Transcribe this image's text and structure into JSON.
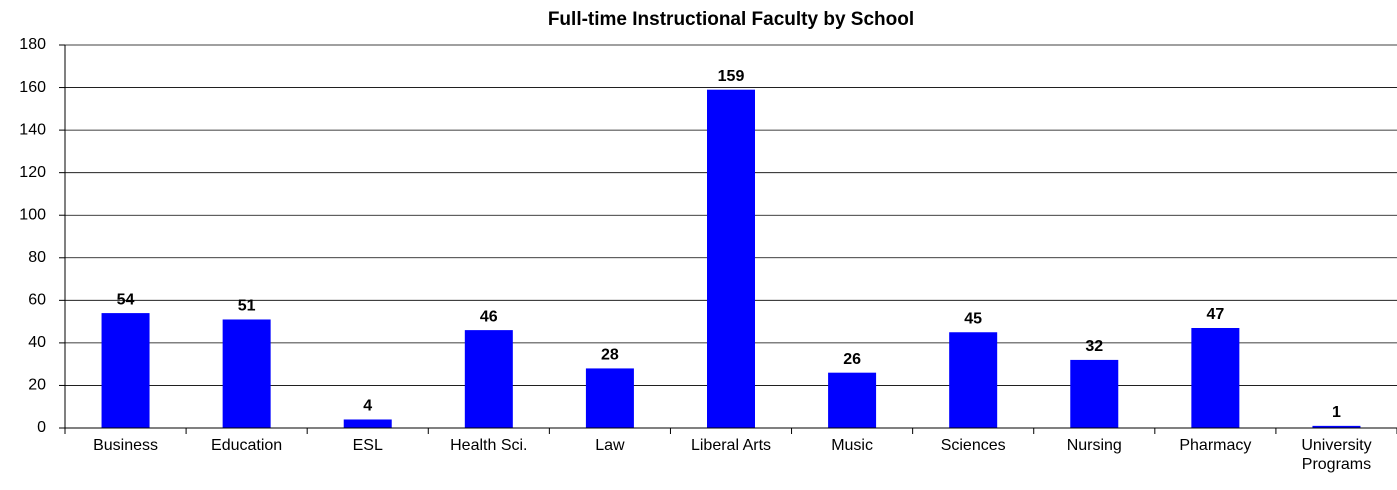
{
  "chart_data": {
    "type": "bar",
    "title": "Full-time Instructional Faculty by School",
    "categories": [
      "Business",
      "Education",
      "ESL",
      "Health Sci.",
      "Law",
      "Liberal Arts",
      "Music",
      "Sciences",
      "Nursing",
      "Pharmacy",
      "University Programs"
    ],
    "values": [
      54,
      51,
      4,
      46,
      28,
      159,
      26,
      45,
      32,
      47,
      1
    ],
    "color": "#0000ff",
    "ylim": [
      0,
      180
    ],
    "yticks": [
      0,
      20,
      40,
      60,
      80,
      100,
      120,
      140,
      160,
      180
    ],
    "grid": true
  }
}
